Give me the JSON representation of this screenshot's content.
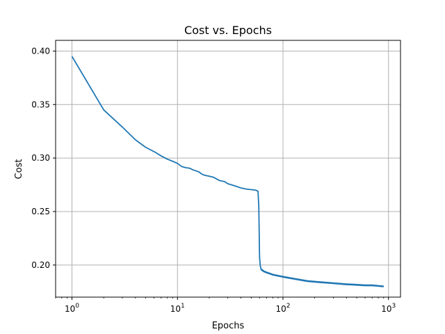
{
  "chart_data": {
    "type": "line",
    "title": "Cost vs. Epochs",
    "xlabel": "Epochs",
    "ylabel": "Cost",
    "xscale": "log",
    "xlim": [
      0.7,
      1300
    ],
    "ylim": [
      0.17,
      0.41
    ],
    "grid": true,
    "color": "#1f77b4",
    "x_ticks": [
      {
        "value": 1,
        "base": "10",
        "exp": "0"
      },
      {
        "value": 10,
        "base": "10",
        "exp": "1"
      },
      {
        "value": 100,
        "base": "10",
        "exp": "2"
      },
      {
        "value": 1000,
        "base": "10",
        "exp": "3"
      }
    ],
    "y_ticks": [
      {
        "value": 0.2,
        "label": "0.20"
      },
      {
        "value": 0.25,
        "label": "0.25"
      },
      {
        "value": 0.3,
        "label": "0.30"
      },
      {
        "value": 0.35,
        "label": "0.35"
      },
      {
        "value": 0.4,
        "label": "0.40"
      }
    ],
    "series": [
      {
        "x": [
          1,
          2,
          3,
          4,
          5,
          6,
          7,
          8,
          9,
          10,
          11,
          12,
          13,
          14,
          15,
          16,
          17,
          18,
          20,
          22,
          25,
          28,
          30,
          35,
          40,
          45,
          50,
          55,
          58,
          59,
          60,
          61,
          62,
          64,
          66,
          70,
          80,
          100,
          130,
          170,
          220,
          300,
          400,
          500,
          600,
          700,
          800,
          900
        ],
        "y": [
          0.395,
          0.345,
          0.329,
          0.317,
          0.31,
          0.306,
          0.302,
          0.299,
          0.297,
          0.295,
          0.292,
          0.291,
          0.2905,
          0.289,
          0.288,
          0.287,
          0.285,
          0.284,
          0.283,
          0.282,
          0.279,
          0.278,
          0.276,
          0.274,
          0.272,
          0.271,
          0.2705,
          0.27,
          0.269,
          0.255,
          0.207,
          0.199,
          0.196,
          0.195,
          0.194,
          0.193,
          0.191,
          0.189,
          0.187,
          0.185,
          0.184,
          0.183,
          0.182,
          0.1815,
          0.181,
          0.181,
          0.1805,
          0.18
        ]
      }
    ]
  }
}
